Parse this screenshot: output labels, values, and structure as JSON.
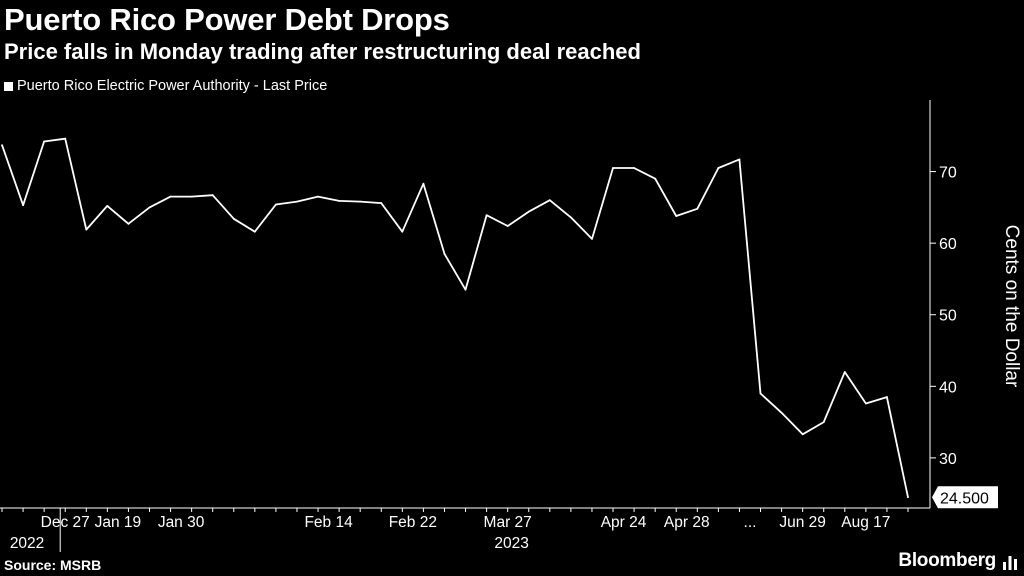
{
  "header": {
    "title": "Puerto Rico Power Debt Drops",
    "subtitle": "Price falls in Monday trading after restructuring deal reached"
  },
  "footer": {
    "source": "Source: MSRB",
    "brand": "Bloomberg"
  },
  "colors": {
    "background": "#000000",
    "line": "#ffffff",
    "text": "#ffffff"
  },
  "chart_data": {
    "type": "line",
    "title": "Puerto Rico Power Debt Drops",
    "subtitle": "Price falls in Monday trading after restructuring deal reached",
    "ylabel": "Cents on the Dollar",
    "xlabel": "",
    "ylim": [
      23,
      80
    ],
    "yticks": [
      30,
      40,
      50,
      60,
      70
    ],
    "legend": "top-left",
    "grid": false,
    "series": [
      {
        "name": "Puerto Rico Electric Power Authority - Last Price",
        "values": [
          73.7,
          65.3,
          74.2,
          74.6,
          61.9,
          65.2,
          62.7,
          65.0,
          66.5,
          66.5,
          66.7,
          63.4,
          61.6,
          65.4,
          65.8,
          66.5,
          65.9,
          65.8,
          65.6,
          61.6,
          68.3,
          58.5,
          53.5,
          63.9,
          62.4,
          64.4,
          66.0,
          63.6,
          60.6,
          70.5,
          70.5,
          69.0,
          63.8,
          64.8,
          70.5,
          71.7,
          39.0,
          36.3,
          33.3,
          35.0,
          42.0,
          37.6,
          38.5,
          24.5
        ]
      }
    ],
    "x_labels": [
      {
        "index": 3,
        "label": "Dec 27"
      },
      {
        "index": 5.5,
        "label": "Jan 19"
      },
      {
        "index": 8.5,
        "label": "Jan 30"
      },
      {
        "index": 15.5,
        "label": "Feb 14"
      },
      {
        "index": 19.5,
        "label": "Feb 22"
      },
      {
        "index": 24,
        "label": "Mar 27"
      },
      {
        "index": 29.5,
        "label": "Apr 24"
      },
      {
        "index": 32.5,
        "label": "Apr 28"
      },
      {
        "index": 35.5,
        "label": "..."
      },
      {
        "index": 38,
        "label": "Jun 29"
      },
      {
        "index": 41,
        "label": "Aug 17"
      }
    ],
    "year_labels": [
      {
        "index": 1,
        "label": "2022"
      },
      {
        "index": 24,
        "label": "2023"
      }
    ],
    "last_value_label": "24.500"
  }
}
